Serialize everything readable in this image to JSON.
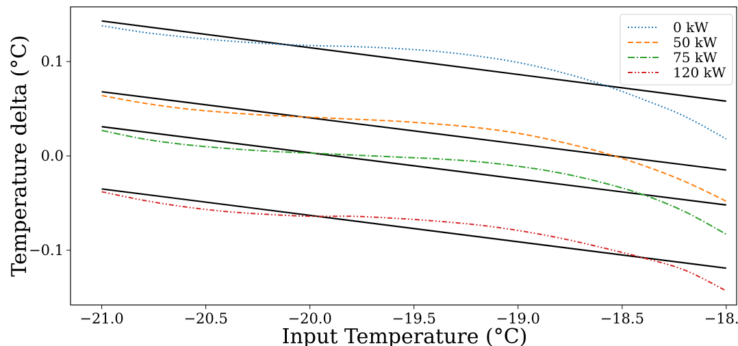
{
  "chart_data": {
    "type": "line",
    "title": "",
    "xlabel": "Input Temperature (°C)",
    "ylabel": "Temperature delta (°C)",
    "xlim": [
      -21.15,
      -17.95
    ],
    "ylim": [
      -0.158,
      0.158
    ],
    "xticks": [
      -21.0,
      -20.5,
      -20.0,
      -19.5,
      -19.0,
      -18.5,
      -18.0
    ],
    "xtick_labels": [
      "−21.0",
      "−20.5",
      "−20.0",
      "−19.5",
      "−19.0",
      "−18.5",
      "−18.0"
    ],
    "yticks": [
      0.1,
      0.0,
      -0.1
    ],
    "ytick_labels": [
      "0.1",
      "0.0",
      "−0.1"
    ],
    "grid": false,
    "legend_position": "top-right",
    "series": [
      {
        "name": "0 kW",
        "color": "#1f77b4",
        "style": "dotted",
        "x": [
          -21.0,
          -20.8,
          -20.6,
          -20.4,
          -20.2,
          -20.0,
          -19.8,
          -19.6,
          -19.4,
          -19.2,
          -19.0,
          -18.8,
          -18.6,
          -18.4,
          -18.2,
          -18.0
        ],
        "y": [
          0.138,
          0.131,
          0.126,
          0.122,
          0.119,
          0.117,
          0.116,
          0.114,
          0.111,
          0.106,
          0.099,
          0.089,
          0.076,
          0.06,
          0.042,
          0.018
        ],
        "fit": {
          "x": [
            -21.0,
            -18.0
          ],
          "y": [
            0.143,
            0.058
          ]
        }
      },
      {
        "name": "50 kW",
        "color": "#ff7f0e",
        "style": "dashed",
        "x": [
          -21.0,
          -20.8,
          -20.6,
          -20.4,
          -20.2,
          -20.0,
          -19.8,
          -19.6,
          -19.4,
          -19.2,
          -19.0,
          -18.8,
          -18.6,
          -18.4,
          -18.2,
          -18.0
        ],
        "y": [
          0.064,
          0.056,
          0.05,
          0.046,
          0.043,
          0.041,
          0.039,
          0.037,
          0.034,
          0.03,
          0.024,
          0.015,
          0.004,
          -0.01,
          -0.027,
          -0.048
        ],
        "fit": {
          "x": [
            -21.0,
            -18.0
          ],
          "y": [
            0.068,
            -0.015
          ]
        }
      },
      {
        "name": "75 kW",
        "color": "#2ca02c",
        "style": "dashdot",
        "x": [
          -21.0,
          -20.8,
          -20.6,
          -20.4,
          -20.2,
          -20.0,
          -19.8,
          -19.6,
          -19.4,
          -19.2,
          -19.0,
          -18.8,
          -18.6,
          -18.4,
          -18.2,
          -18.0
        ],
        "y": [
          0.027,
          0.018,
          0.012,
          0.008,
          0.005,
          0.003,
          0.001,
          -0.001,
          -0.003,
          -0.006,
          -0.011,
          -0.018,
          -0.028,
          -0.041,
          -0.059,
          -0.083
        ],
        "fit": {
          "x": [
            -21.0,
            -18.0
          ],
          "y": [
            0.031,
            -0.052
          ]
        }
      },
      {
        "name": "120 kW",
        "color": "#d62728",
        "style": "dashdotdot",
        "x": [
          -21.0,
          -20.8,
          -20.6,
          -20.4,
          -20.2,
          -20.0,
          -19.8,
          -19.6,
          -19.4,
          -19.2,
          -19.0,
          -18.8,
          -18.6,
          -18.4,
          -18.2,
          -18.0
        ],
        "y": [
          -0.038,
          -0.047,
          -0.054,
          -0.059,
          -0.062,
          -0.064,
          -0.064,
          -0.066,
          -0.069,
          -0.073,
          -0.079,
          -0.087,
          -0.097,
          -0.108,
          -0.121,
          -0.143
        ],
        "fit": {
          "x": [
            -21.0,
            -18.0
          ],
          "y": [
            -0.035,
            -0.119
          ]
        }
      }
    ]
  }
}
